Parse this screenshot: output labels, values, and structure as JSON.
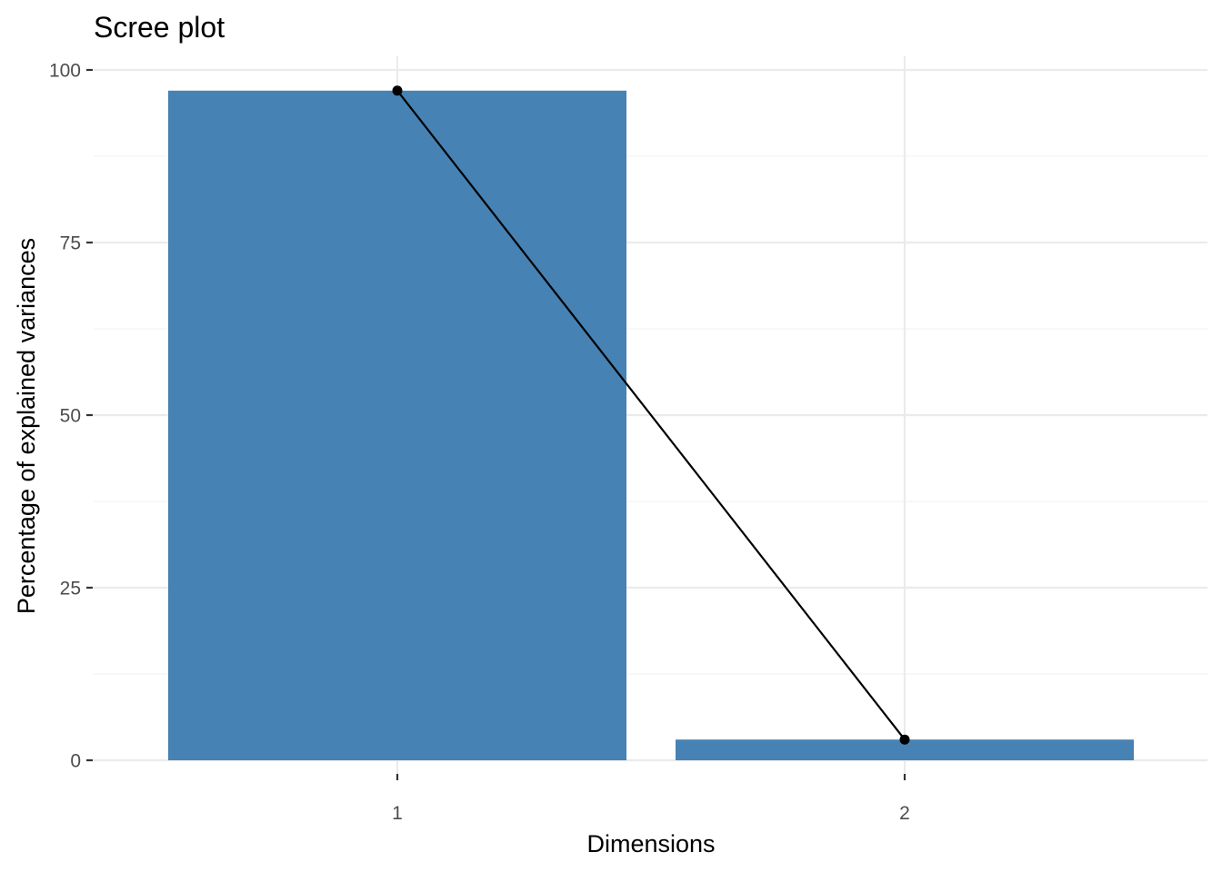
{
  "chart_data": {
    "type": "bar",
    "title": "Scree plot",
    "xlabel": "Dimensions",
    "ylabel": "Percentage of explained variances",
    "categories": [
      "1",
      "2"
    ],
    "values": [
      97.0,
      3.0
    ],
    "ylim": [
      0,
      100
    ],
    "y_ticks": [
      0,
      25,
      50,
      75,
      100
    ],
    "y_tick_labels": [
      "0",
      "25",
      "50",
      "75",
      "100"
    ],
    "grid": true,
    "bar_color": "#4682B4",
    "line_color": "#000000",
    "overlay": "line-with-points"
  }
}
